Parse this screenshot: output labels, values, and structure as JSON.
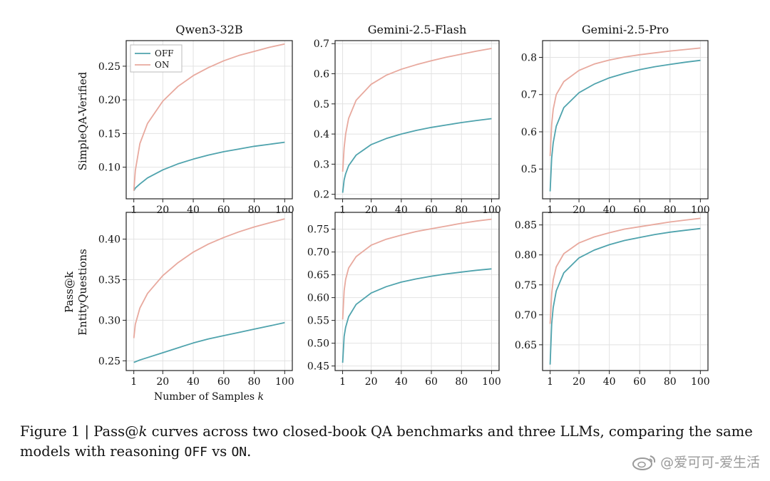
{
  "figure": {
    "row_labels": [
      "SimpleQA-Verified",
      "EntityQuestions"
    ],
    "shared_ylabel": "Pass@k",
    "xlabel_prefix": "Number of Samples",
    "xlabel_var": "k",
    "caption": {
      "lead": "Figure 1 | Pass@",
      "k": "k",
      "mid": " curves across two closed-book QA benchmarks and three LLMs, comparing the same models with reasoning ",
      "off": "OFF",
      "vs": " vs ",
      "on": "ON",
      "end": "."
    },
    "watermark": "@爱可可-爱生活",
    "colors": {
      "off": "#4fa3ad",
      "on": "#e8a99e",
      "grid": "#e2e2e2"
    }
  },
  "chart_data": [
    {
      "type": "line",
      "title": "Qwen3-32B",
      "row": "SimpleQA-Verified",
      "col": 0,
      "xlim": [
        -4,
        105
      ],
      "ylim": [
        0.053,
        0.288
      ],
      "xticks": [
        1,
        20,
        40,
        60,
        80,
        100
      ],
      "yticks": [
        0.1,
        0.15,
        0.2,
        0.25
      ],
      "ytick_labels": [
        "0.10",
        "0.15",
        "0.20",
        "0.25"
      ],
      "legend": {
        "position": "top-left",
        "entries": [
          "OFF",
          "ON"
        ]
      },
      "series": [
        {
          "name": "OFF",
          "x": [
            1,
            2,
            5,
            10,
            20,
            30,
            40,
            50,
            60,
            70,
            80,
            90,
            100
          ],
          "values": [
            0.065,
            0.069,
            0.075,
            0.084,
            0.096,
            0.105,
            0.112,
            0.118,
            0.123,
            0.127,
            0.131,
            0.134,
            0.137
          ]
        },
        {
          "name": "ON",
          "x": [
            1,
            2,
            5,
            10,
            20,
            30,
            40,
            50,
            60,
            70,
            80,
            90,
            100
          ],
          "values": [
            0.065,
            0.095,
            0.135,
            0.165,
            0.198,
            0.22,
            0.236,
            0.248,
            0.258,
            0.266,
            0.272,
            0.278,
            0.283
          ]
        }
      ]
    },
    {
      "type": "line",
      "title": "Gemini-2.5-Flash",
      "row": "SimpleQA-Verified",
      "col": 1,
      "xlim": [
        -4,
        105
      ],
      "ylim": [
        0.185,
        0.71
      ],
      "xticks": [
        1,
        20,
        40,
        60,
        80,
        100
      ],
      "yticks": [
        0.2,
        0.3,
        0.4,
        0.5,
        0.6,
        0.7
      ],
      "ytick_labels": [
        "0.2",
        "0.3",
        "0.4",
        "0.5",
        "0.6",
        "0.7"
      ],
      "series": [
        {
          "name": "OFF",
          "x": [
            1,
            2,
            3,
            5,
            10,
            20,
            30,
            40,
            50,
            60,
            70,
            80,
            90,
            100
          ],
          "values": [
            0.205,
            0.248,
            0.268,
            0.295,
            0.33,
            0.365,
            0.385,
            0.4,
            0.412,
            0.422,
            0.43,
            0.438,
            0.445,
            0.451
          ]
        },
        {
          "name": "ON",
          "x": [
            1,
            2,
            3,
            5,
            10,
            20,
            30,
            40,
            50,
            60,
            70,
            80,
            90,
            100
          ],
          "values": [
            0.275,
            0.355,
            0.4,
            0.452,
            0.512,
            0.565,
            0.595,
            0.615,
            0.63,
            0.643,
            0.655,
            0.665,
            0.675,
            0.684
          ]
        }
      ]
    },
    {
      "type": "line",
      "title": "Gemini-2.5-Pro",
      "row": "SimpleQA-Verified",
      "col": 2,
      "xlim": [
        -4,
        105
      ],
      "ylim": [
        0.42,
        0.845
      ],
      "xticks": [
        1,
        20,
        40,
        60,
        80,
        100
      ],
      "yticks": [
        0.5,
        0.6,
        0.7,
        0.8
      ],
      "ytick_labels": [
        "0.5",
        "0.6",
        "0.7",
        "0.8"
      ],
      "series": [
        {
          "name": "OFF",
          "x": [
            1,
            2,
            3,
            5,
            10,
            20,
            30,
            40,
            50,
            60,
            70,
            80,
            90,
            100
          ],
          "values": [
            0.44,
            0.53,
            0.57,
            0.615,
            0.665,
            0.705,
            0.728,
            0.745,
            0.757,
            0.767,
            0.775,
            0.781,
            0.787,
            0.792
          ]
        },
        {
          "name": "ON",
          "x": [
            1,
            2,
            3,
            5,
            10,
            20,
            30,
            40,
            50,
            60,
            70,
            80,
            90,
            100
          ],
          "values": [
            0.535,
            0.62,
            0.66,
            0.7,
            0.735,
            0.765,
            0.782,
            0.793,
            0.801,
            0.807,
            0.812,
            0.817,
            0.821,
            0.825
          ]
        }
      ]
    },
    {
      "type": "line",
      "title": "",
      "row": "EntityQuestions",
      "col": 0,
      "xlim": [
        -4,
        105
      ],
      "ylim": [
        0.238,
        0.433
      ],
      "xticks": [
        1,
        20,
        40,
        60,
        80,
        100
      ],
      "yticks": [
        0.25,
        0.3,
        0.35,
        0.4
      ],
      "ytick_labels": [
        "0.25",
        "0.30",
        "0.35",
        "0.40"
      ],
      "xlabel": "Number of Samples k",
      "series": [
        {
          "name": "OFF",
          "x": [
            1,
            5,
            10,
            20,
            30,
            40,
            50,
            60,
            70,
            80,
            90,
            100
          ],
          "values": [
            0.248,
            0.251,
            0.254,
            0.26,
            0.266,
            0.272,
            0.277,
            0.281,
            0.285,
            0.289,
            0.293,
            0.297
          ]
        },
        {
          "name": "ON",
          "x": [
            1,
            2,
            5,
            10,
            20,
            30,
            40,
            50,
            60,
            70,
            80,
            90,
            100
          ],
          "values": [
            0.278,
            0.295,
            0.315,
            0.333,
            0.355,
            0.371,
            0.384,
            0.394,
            0.402,
            0.409,
            0.415,
            0.42,
            0.425
          ]
        }
      ]
    },
    {
      "type": "line",
      "title": "",
      "row": "EntityQuestions",
      "col": 1,
      "xlim": [
        -4,
        105
      ],
      "ylim": [
        0.44,
        0.787
      ],
      "xticks": [
        1,
        20,
        40,
        60,
        80,
        100
      ],
      "yticks": [
        0.45,
        0.5,
        0.55,
        0.6,
        0.65,
        0.7,
        0.75
      ],
      "ytick_labels": [
        "0.45",
        "0.50",
        "0.55",
        "0.60",
        "0.65",
        "0.70",
        "0.75"
      ],
      "series": [
        {
          "name": "OFF",
          "x": [
            1,
            2,
            3,
            5,
            10,
            20,
            30,
            40,
            50,
            60,
            70,
            80,
            90,
            100
          ],
          "values": [
            0.457,
            0.515,
            0.535,
            0.558,
            0.585,
            0.61,
            0.624,
            0.634,
            0.641,
            0.647,
            0.652,
            0.656,
            0.66,
            0.663
          ]
        },
        {
          "name": "ON",
          "x": [
            1,
            2,
            3,
            5,
            10,
            20,
            30,
            40,
            50,
            60,
            70,
            80,
            90,
            100
          ],
          "values": [
            0.552,
            0.615,
            0.64,
            0.665,
            0.69,
            0.715,
            0.728,
            0.737,
            0.745,
            0.751,
            0.757,
            0.763,
            0.768,
            0.772
          ]
        }
      ]
    },
    {
      "type": "line",
      "title": "",
      "row": "EntityQuestions",
      "col": 2,
      "xlim": [
        -4,
        105
      ],
      "ylim": [
        0.607,
        0.871
      ],
      "xticks": [
        1,
        20,
        40,
        60,
        80,
        100
      ],
      "yticks": [
        0.65,
        0.7,
        0.75,
        0.8,
        0.85
      ],
      "ytick_labels": [
        "0.65",
        "0.70",
        "0.75",
        "0.80",
        "0.85"
      ],
      "series": [
        {
          "name": "OFF",
          "x": [
            1,
            2,
            3,
            5,
            10,
            20,
            30,
            40,
            50,
            60,
            70,
            80,
            90,
            100
          ],
          "values": [
            0.617,
            0.685,
            0.712,
            0.74,
            0.77,
            0.795,
            0.808,
            0.817,
            0.824,
            0.829,
            0.834,
            0.838,
            0.841,
            0.844
          ]
        },
        {
          "name": "ON",
          "x": [
            1,
            2,
            3,
            5,
            10,
            20,
            30,
            40,
            50,
            60,
            70,
            80,
            90,
            100
          ],
          "values": [
            0.685,
            0.735,
            0.758,
            0.78,
            0.802,
            0.82,
            0.83,
            0.837,
            0.843,
            0.847,
            0.851,
            0.855,
            0.858,
            0.861
          ]
        }
      ]
    }
  ]
}
